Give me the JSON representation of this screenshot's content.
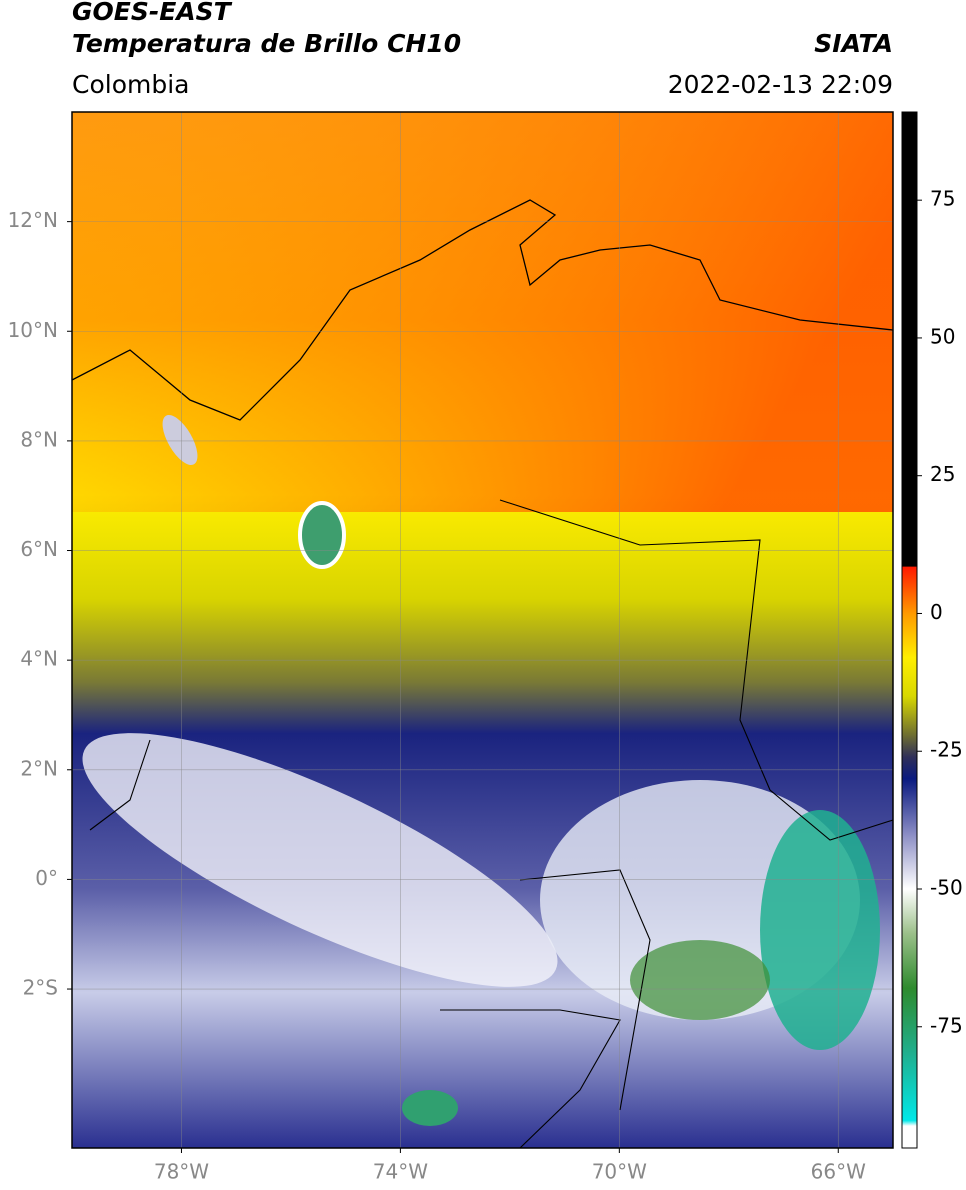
{
  "header": {
    "title": "GOES-EAST",
    "subtitle": "Temperatura de Brillo CH10",
    "source": "SIATA",
    "region": "Colombia",
    "datetime": "2022-02-13 22:09"
  },
  "map": {
    "xlim": [
      -80,
      -65
    ],
    "ylim": [
      -4.9,
      14
    ],
    "xticks": [
      {
        "value": -78,
        "label": "78°W"
      },
      {
        "value": -74,
        "label": "74°W"
      },
      {
        "value": -70,
        "label": "70°W"
      },
      {
        "value": -66,
        "label": "66°W"
      }
    ],
    "yticks": [
      {
        "value": 12,
        "label": "12°N"
      },
      {
        "value": 10,
        "label": "10°N"
      },
      {
        "value": 8,
        "label": "8°N"
      },
      {
        "value": 6,
        "label": "6°N"
      },
      {
        "value": 4,
        "label": "4°N"
      },
      {
        "value": 2,
        "label": "2°N"
      },
      {
        "value": 0,
        "label": "0°"
      },
      {
        "value": -2,
        "label": "2°S"
      }
    ],
    "grid": true
  },
  "colorbar": {
    "lim": [
      -97,
      91
    ],
    "ticks": [
      75,
      50,
      25,
      0,
      -25,
      -50,
      -75
    ],
    "colormap": [
      {
        "value": 91,
        "color": "#000000"
      },
      {
        "value": 8.6,
        "color": "#000000"
      },
      {
        "value": 8.4,
        "color": "#ff1a00"
      },
      {
        "value": 0,
        "color": "#ff9a00"
      },
      {
        "value": -8,
        "color": "#ffee00"
      },
      {
        "value": -15,
        "color": "#d8d800"
      },
      {
        "value": -22,
        "color": "#6f6f30"
      },
      {
        "value": -26,
        "color": "#303058"
      },
      {
        "value": -30,
        "color": "#0a1a80"
      },
      {
        "value": -40,
        "color": "#8a8cc4"
      },
      {
        "value": -50,
        "color": "#ffffff"
      },
      {
        "value": -58,
        "color": "#9cc08a"
      },
      {
        "value": -68,
        "color": "#2e8b2e"
      },
      {
        "value": -80,
        "color": "#20b090"
      },
      {
        "value": -92,
        "color": "#00e8e8"
      },
      {
        "value": -93,
        "color": "#ffffff"
      },
      {
        "value": -97,
        "color": "#ffffff"
      }
    ]
  }
}
